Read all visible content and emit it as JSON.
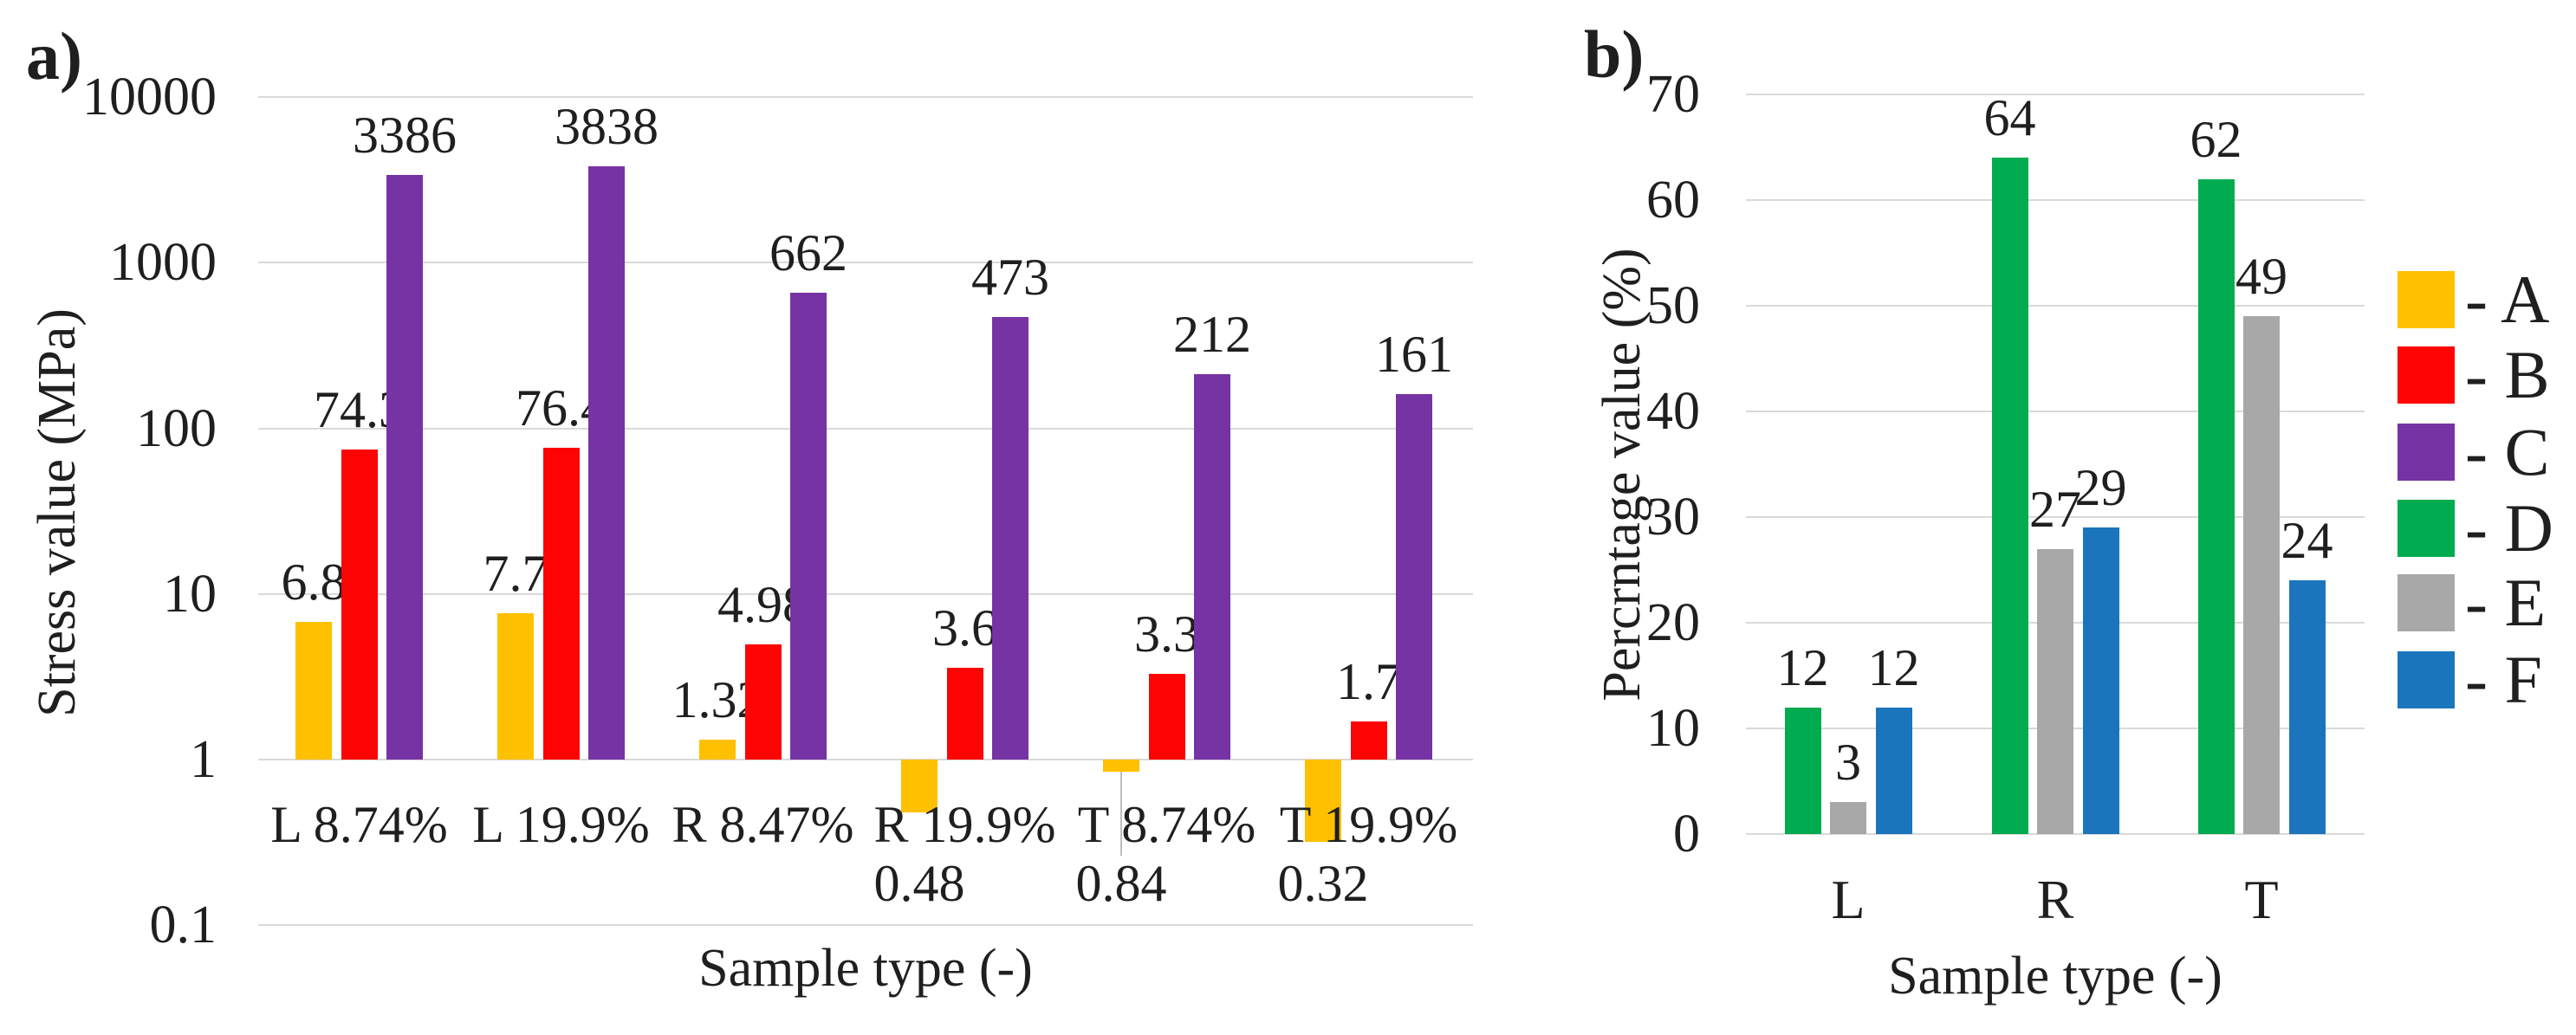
{
  "chart_data": [
    {
      "type": "bar",
      "id": "a",
      "tag": "a)",
      "title": "",
      "xlabel": "Sample type (-)",
      "ylabel": "Stress value (MPa)",
      "yscale": "log",
      "ylim": [
        0.1,
        10000
      ],
      "grid": true,
      "yticks": [
        "10000",
        "1000",
        "100",
        "10",
        "1",
        "0.1"
      ],
      "categories": [
        "L 8.74%",
        "L 19.9%",
        "R 8.47%",
        "R 19.9%",
        "T 8.74%",
        "T 19.9%"
      ],
      "series": [
        {
          "name": "A",
          "color": "#FFC000",
          "values": [
            6.8,
            7.7,
            1.32,
            0.48,
            0.84,
            0.32
          ],
          "labels": [
            "6.8",
            "7.7",
            "1.32",
            "0.48",
            "0.84",
            "0.32"
          ]
        },
        {
          "name": "B",
          "color": "#FC0404",
          "values": [
            74.3,
            76.4,
            4.98,
            3.6,
            3.3,
            1.7
          ],
          "labels": [
            "74.3",
            "76.4",
            "4.98",
            "3.6",
            "3.3",
            "1.7"
          ]
        },
        {
          "name": "C",
          "color": "#7633A3",
          "values": [
            3386,
            3838,
            662,
            473,
            212,
            161
          ],
          "labels": [
            "3386",
            "3838",
            "662",
            "473",
            "212",
            "161"
          ]
        }
      ]
    },
    {
      "type": "bar",
      "id": "b",
      "tag": "b)",
      "title": "",
      "xlabel": "Sample type (-)",
      "ylabel": "Percrntage value (%)",
      "yscale": "linear",
      "ylim": [
        0,
        70
      ],
      "grid": true,
      "yticks": [
        "70",
        "60",
        "50",
        "40",
        "30",
        "20",
        "10",
        "0"
      ],
      "categories": [
        "L",
        "R",
        "T"
      ],
      "series": [
        {
          "name": "D",
          "color": "#00AC4F",
          "values": [
            12,
            64,
            62
          ],
          "labels": [
            "12",
            "64",
            "62"
          ]
        },
        {
          "name": "E",
          "color": "#A8A8A8",
          "values": [
            3,
            27,
            49
          ],
          "labels": [
            "3",
            "27",
            "49"
          ]
        },
        {
          "name": "F",
          "color": "#1B75BC",
          "values": [
            12,
            29,
            24
          ],
          "labels": [
            "12",
            "29",
            "24"
          ]
        }
      ]
    }
  ],
  "legend": {
    "items": [
      {
        "label": "- A",
        "color": "#FFC000"
      },
      {
        "label": "- B",
        "color": "#FC0404"
      },
      {
        "label": "- C",
        "color": "#7633A3"
      },
      {
        "label": "- D",
        "color": "#00AC4F"
      },
      {
        "label": "- E",
        "color": "#A8A8A8"
      },
      {
        "label": "- F",
        "color": "#1B75BC"
      }
    ]
  }
}
